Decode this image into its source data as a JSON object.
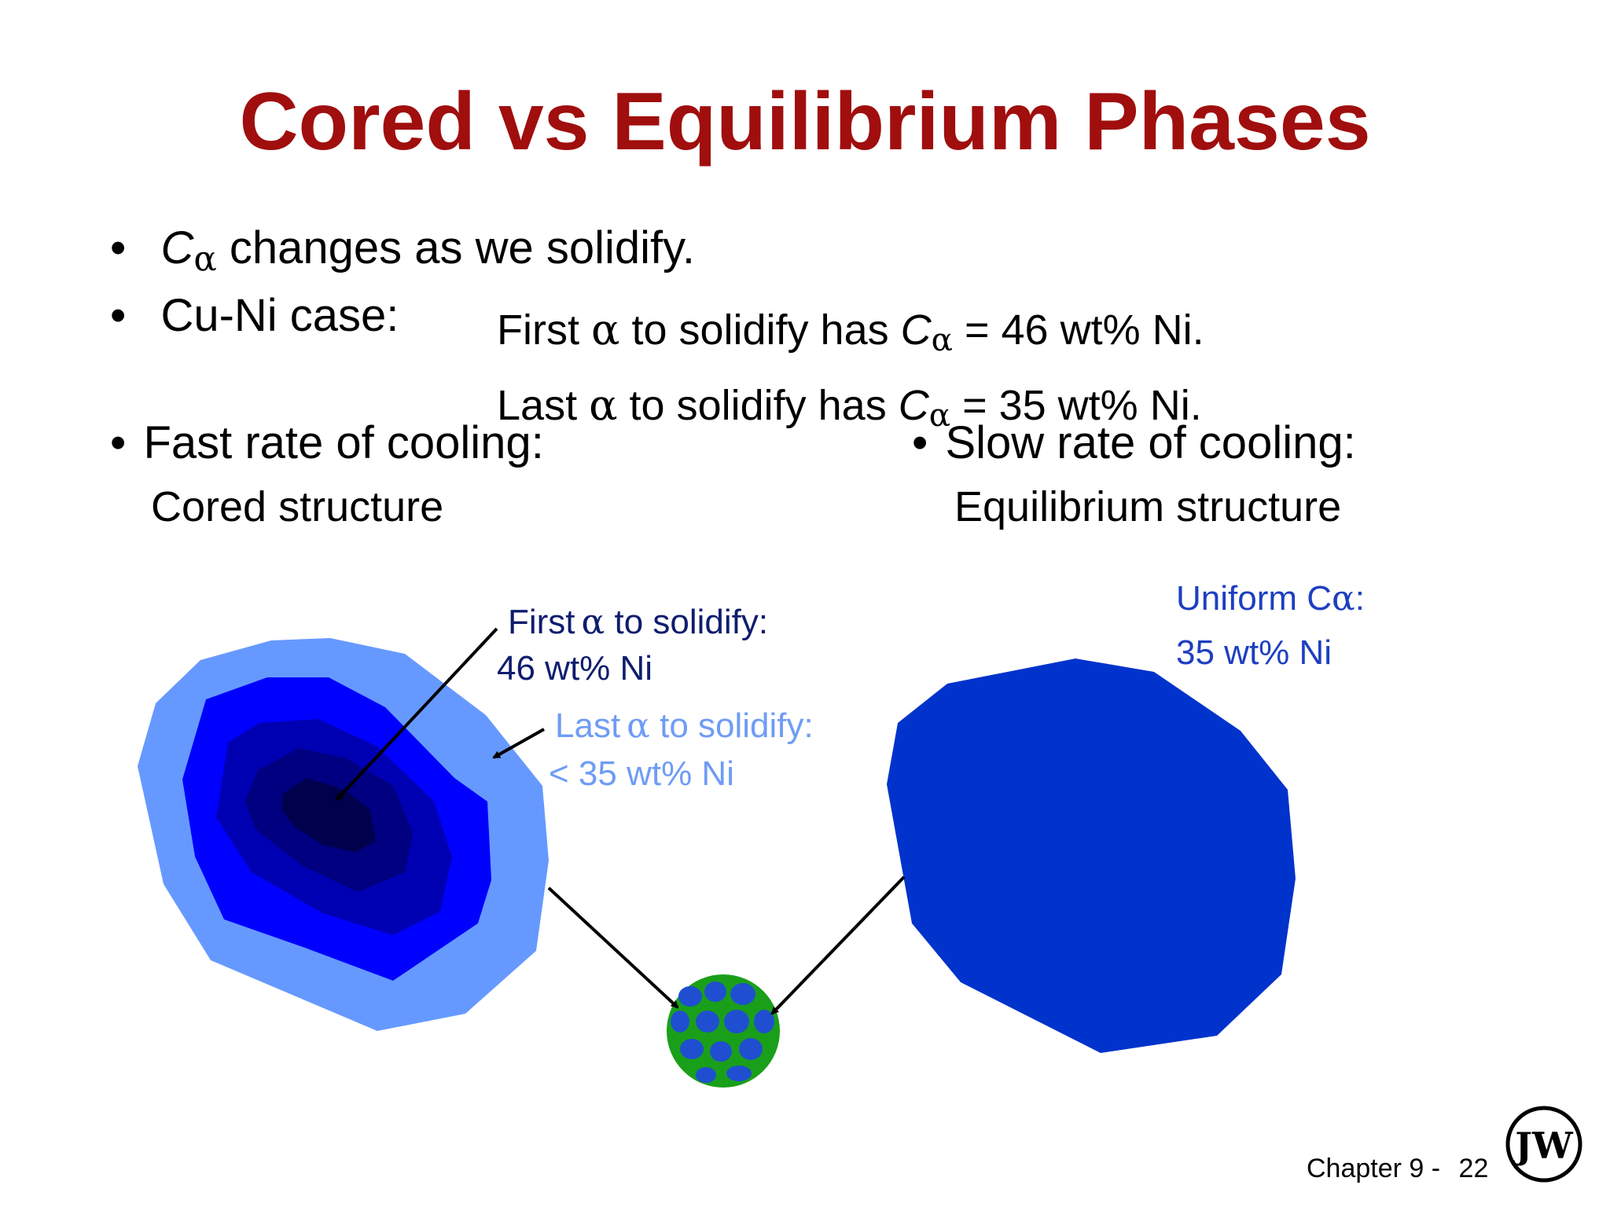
{
  "title": "Cored vs Equilibrium Phases",
  "bullets": {
    "b1": {
      "dot": "•",
      "symbol": "C",
      "subscript": "α",
      "text": " changes as we solidify."
    },
    "b2": {
      "dot": "•",
      "label": "Cu-Ni case:"
    },
    "first_line": {
      "pre": "First ",
      "alpha": "α",
      "mid": " to solidify has ",
      "symbol": "C",
      "subscript": "α",
      "post": " = 46 wt% Ni."
    },
    "last_line": {
      "pre": "Last  ",
      "alpha": "α",
      "mid": " to solidify has ",
      "symbol": "C",
      "subscript": "α",
      "post": " = 35 wt% Ni."
    },
    "fast": {
      "dot": "•",
      "label": "Fast rate of cooling:",
      "sub": "Cored structure"
    },
    "slow": {
      "dot": "•",
      "label": "Slow rate of cooling:",
      "sub": "Equilibrium structure"
    }
  },
  "annotations": {
    "first_alpha": {
      "pre": "First",
      "alpha": "α",
      "post": " to solidify:",
      "value": "46 wt% Ni"
    },
    "last_alpha": {
      "pre": "Last",
      "alpha": "α",
      "post": "  to solidify:",
      "value": "< 35 wt% Ni"
    },
    "uniform": {
      "pre": "Uniform C",
      "alpha": "α",
      "post": ":",
      "value": "35 wt% Ni"
    }
  },
  "footer": {
    "chapter": "Chapter 9 -",
    "page": "22"
  },
  "logo": {
    "letters": "JW"
  },
  "colors": {
    "title": "#a00e0e",
    "grain_outer": "#6699ff",
    "grain_mid": "#0000ff",
    "grain_inner": "#0000b3",
    "grain_core": "#000080",
    "grain_dark": "#00004d",
    "equilibrium_grain": "#0033cc",
    "micro_green": "#1a9f1a",
    "micro_blue": "#1f4fd0"
  },
  "icons": [
    "arrow",
    "wiley-logo"
  ]
}
